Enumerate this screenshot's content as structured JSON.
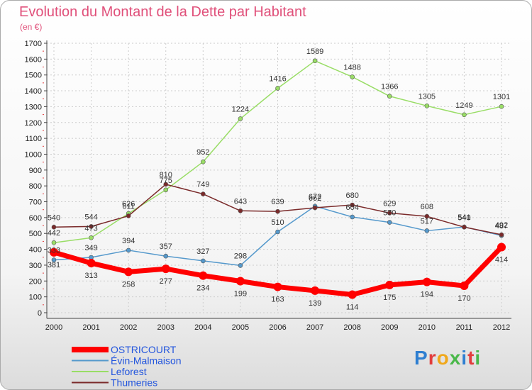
{
  "header": {
    "title": "Evolution du Montant de la Dette par Habitant",
    "subtitle": "(en €)"
  },
  "logo": {
    "text": "Proxiti",
    "colors": [
      "#2f7fd1",
      "#e23d3d",
      "#f0a81c",
      "#4ab84a",
      "#2f7fd1",
      "#e23d3d",
      "#4ab84a"
    ]
  },
  "chart_data": {
    "type": "line",
    "title": "Evolution du Montant de la Dette par Habitant",
    "subtitle": "(en €)",
    "x": [
      "2000",
      "2001",
      "2002",
      "2003",
      "2004",
      "2005",
      "2006",
      "2007",
      "2008",
      "2009",
      "2010",
      "2011",
      "2012"
    ],
    "ylim": [
      0,
      1700
    ],
    "yticks": [
      0,
      100,
      200,
      300,
      400,
      500,
      600,
      700,
      800,
      900,
      1000,
      1100,
      1200,
      1300,
      1400,
      1500,
      1600,
      1700
    ],
    "grid": true,
    "legend_position": "bottom-left",
    "series": [
      {
        "name": "OSTRICOURT",
        "color": "#ff0000",
        "width": 7,
        "radius": 6,
        "values": [
          381,
          313,
          258,
          277,
          234,
          199,
          163,
          139,
          114,
          175,
          194,
          170,
          414
        ],
        "labels": [
          "381",
          "313",
          "258",
          "277",
          "234",
          "199",
          "163",
          "139",
          "114",
          "175",
          "194",
          "170",
          "414"
        ]
      },
      {
        "name": "Évin-Malmaison",
        "color": "#5599cc",
        "width": 1.5,
        "radius": 3,
        "values": [
          333,
          349,
          394,
          357,
          327,
          298,
          510,
          672,
          604,
          570,
          517,
          541,
          487
        ],
        "labels": [
          "333",
          "349",
          "394",
          "357",
          "327",
          "298",
          "510",
          "672",
          "604",
          "570",
          "517",
          "541",
          "487"
        ]
      },
      {
        "name": "Leforest",
        "color": "#99dd66",
        "width": 1.5,
        "radius": 3,
        "values": [
          442,
          473,
          626,
          775,
          952,
          1224,
          1416,
          1589,
          1488,
          1366,
          1305,
          1249,
          1301
        ],
        "labels": [
          "442",
          "473",
          "626",
          "775",
          "952",
          "1224",
          "1416",
          "1589",
          "1488",
          "1366",
          "1305",
          "1249",
          "1301"
        ]
      },
      {
        "name": "Thumeries",
        "color": "#7a2a2a",
        "width": 1.5,
        "radius": 3,
        "values": [
          540,
          544,
          611,
          810,
          749,
          643,
          639,
          662,
          680,
          629,
          608,
          540,
          492
        ],
        "labels": [
          "540",
          "544",
          "611",
          "810",
          "749",
          "643",
          "639",
          "662",
          "680",
          "629",
          "608",
          "540",
          "492"
        ]
      }
    ]
  }
}
